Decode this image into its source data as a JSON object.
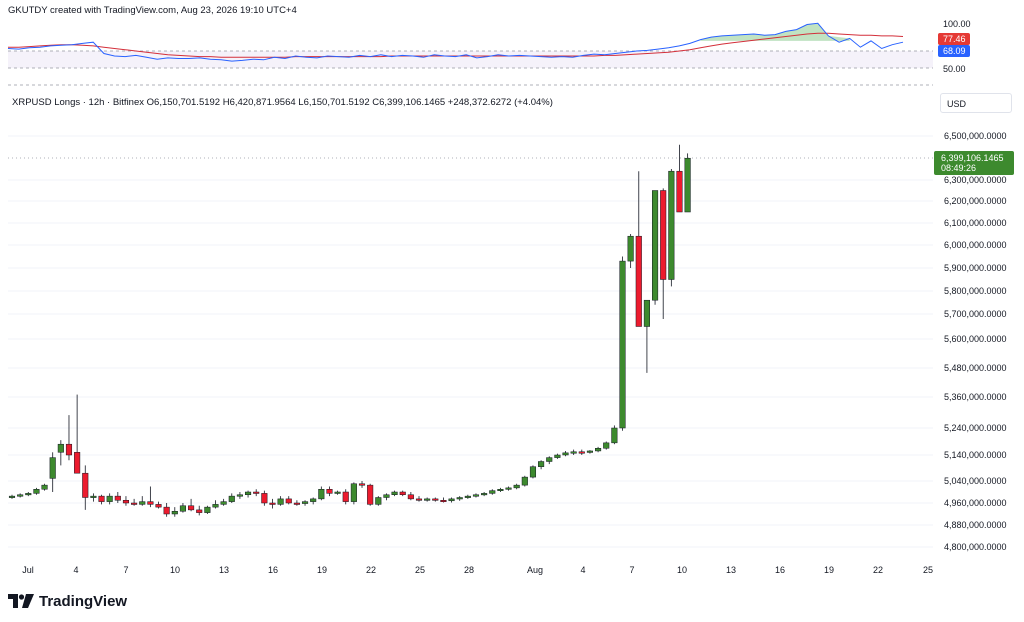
{
  "header": "GKUTDY created with TradingView.com, Aug 23, 2026 19:10 UTC+4",
  "legend": {
    "symbol": "XRPUSD Longs · 12h · Bitfinex",
    "open": "O6,150,701.5192",
    "high": "H6,420,871.9564",
    "low": "L6,150,701.5192",
    "close": "C6,399,106.1465",
    "change": "+248,372.6272 (+4.04%)"
  },
  "currency_button": "USD",
  "brand": "TradingView",
  "colors": {
    "up": "#3d8a2e",
    "down": "#ec1b2e",
    "rsi": "#2962ff",
    "rsi_ma": "#d32f3a",
    "price_tag": "#3d8a2e"
  },
  "rsi_panel": {
    "labels": [
      "100.00",
      "50.00"
    ],
    "current_ma_label": "77.46",
    "current_rsi_label": "68.09",
    "band": [
      30,
      70
    ],
    "ylim": [
      0,
      100
    ]
  },
  "price_tag": {
    "value": "6,399,106.1465",
    "countdown": "08:49:26"
  },
  "chart_data": {
    "type": "candlestick",
    "interval": "12h",
    "ylim": [
      4780000000,
      6560000000
    ],
    "price_scale_labels": [
      "6,500,000.0000",
      "6,300,000.0000",
      "6,200,000.0000",
      "6,100,000.0000",
      "6,000,000.0000",
      "5,900,000.0000",
      "5,800,000.0000",
      "5,700,000.0000",
      "5,600,000.0000",
      "5,480,000.0000",
      "5,360,000.0000",
      "5,240,000.0000",
      "5,140,000.0000",
      "5,040,000.0000",
      "4,960,000.0000",
      "4,880,000.0000",
      "4,800,000.0000"
    ],
    "x_ticks": [
      "Jul",
      "4",
      "7",
      "10",
      "13",
      "16",
      "19",
      "22",
      "25",
      "28",
      "Aug",
      "4",
      "7",
      "10",
      "13",
      "16",
      "19",
      "22",
      "25"
    ],
    "candles_ohlc": [
      [
        4980,
        4990,
        4975,
        4985
      ],
      [
        4985,
        4995,
        4980,
        4990
      ],
      [
        4990,
        5000,
        4985,
        4995
      ],
      [
        4995,
        5015,
        4990,
        5010
      ],
      [
        5010,
        5030,
        5005,
        5025
      ],
      [
        5050,
        5150,
        5000,
        5130
      ],
      [
        5150,
        5195,
        5100,
        5180
      ],
      [
        5180,
        5290,
        5120,
        5140
      ],
      [
        5150,
        5370,
        5100,
        5070
      ],
      [
        5070,
        5100,
        4935,
        4980
      ],
      [
        4980,
        4995,
        4965,
        4985
      ],
      [
        4985,
        4990,
        4955,
        4965
      ],
      [
        4965,
        4995,
        4955,
        4985
      ],
      [
        4985,
        5000,
        4960,
        4970
      ],
      [
        4970,
        4985,
        4950,
        4960
      ],
      [
        4960,
        4975,
        4950,
        4955
      ],
      [
        4955,
        4985,
        4950,
        4965
      ],
      [
        4965,
        5020,
        4945,
        4955
      ],
      [
        4955,
        4965,
        4940,
        4945
      ],
      [
        4945,
        4960,
        4910,
        4920
      ],
      [
        4920,
        4945,
        4910,
        4930
      ],
      [
        4930,
        4960,
        4925,
        4950
      ],
      [
        4950,
        4975,
        4930,
        4935
      ],
      [
        4935,
        4950,
        4915,
        4925
      ],
      [
        4925,
        4950,
        4920,
        4945
      ],
      [
        4945,
        4970,
        4940,
        4955
      ],
      [
        4955,
        4975,
        4950,
        4965
      ],
      [
        4965,
        4995,
        4960,
        4985
      ],
      [
        4985,
        5000,
        4975,
        4990
      ],
      [
        4990,
        5005,
        4980,
        5000
      ],
      [
        5000,
        5010,
        4985,
        4995
      ],
      [
        4995,
        5005,
        4950,
        4960
      ],
      [
        4960,
        4975,
        4940,
        4955
      ],
      [
        4955,
        4985,
        4950,
        4975
      ],
      [
        4975,
        4985,
        4955,
        4960
      ],
      [
        4960,
        4970,
        4950,
        4958
      ],
      [
        4958,
        4970,
        4950,
        4965
      ],
      [
        4965,
        4980,
        4955,
        4975
      ],
      [
        4975,
        5020,
        4970,
        5010
      ],
      [
        5010,
        5020,
        4985,
        4995
      ],
      [
        4995,
        5005,
        4990,
        5000
      ],
      [
        5000,
        5010,
        4955,
        4965
      ],
      [
        4965,
        5035,
        4955,
        5030
      ],
      [
        5030,
        5040,
        5015,
        5025
      ],
      [
        5025,
        5030,
        4950,
        4955
      ],
      [
        4955,
        4985,
        4950,
        4980
      ],
      [
        4980,
        4995,
        4970,
        4990
      ],
      [
        4990,
        5005,
        4985,
        5000
      ],
      [
        5000,
        5005,
        4985,
        4990
      ],
      [
        4990,
        5000,
        4970,
        4975
      ],
      [
        4975,
        4985,
        4965,
        4972
      ],
      [
        4972,
        4980,
        4965,
        4975
      ],
      [
        4975,
        4980,
        4965,
        4970
      ],
      [
        4970,
        4980,
        4962,
        4968
      ],
      [
        4968,
        4980,
        4962,
        4975
      ],
      [
        4975,
        4985,
        4968,
        4980
      ],
      [
        4980,
        4990,
        4975,
        4985
      ],
      [
        4985,
        4995,
        4980,
        4990
      ],
      [
        4990,
        5000,
        4985,
        4995
      ],
      [
        4995,
        5010,
        4990,
        5005
      ],
      [
        5005,
        5015,
        5000,
        5010
      ],
      [
        5010,
        5020,
        5005,
        5015
      ],
      [
        5015,
        5030,
        5010,
        5025
      ],
      [
        5025,
        5060,
        5020,
        5055
      ],
      [
        5055,
        5100,
        5050,
        5095
      ],
      [
        5095,
        5120,
        5085,
        5115
      ],
      [
        5115,
        5135,
        5105,
        5130
      ],
      [
        5130,
        5145,
        5125,
        5140
      ],
      [
        5140,
        5155,
        5135,
        5148
      ],
      [
        5148,
        5160,
        5140,
        5152
      ],
      [
        5152,
        5160,
        5140,
        5150
      ],
      [
        5150,
        5158,
        5145,
        5155
      ],
      [
        5155,
        5170,
        5150,
        5165
      ],
      [
        5165,
        5190,
        5160,
        5185
      ],
      [
        5185,
        5250,
        5180,
        5240
      ],
      [
        5240,
        5950,
        5230,
        5930
      ],
      [
        5930,
        6050,
        5900,
        6040
      ],
      [
        6040,
        6340,
        5650,
        5650
      ],
      [
        5650,
        5760,
        5460,
        5760
      ],
      [
        5760,
        6250,
        5740,
        6250
      ],
      [
        6250,
        6260,
        5680,
        5850
      ],
      [
        5850,
        6350,
        5820,
        6340
      ],
      [
        6340,
        6460,
        6150,
        6150
      ],
      [
        6150,
        6421,
        6151,
        6399
      ]
    ]
  }
}
